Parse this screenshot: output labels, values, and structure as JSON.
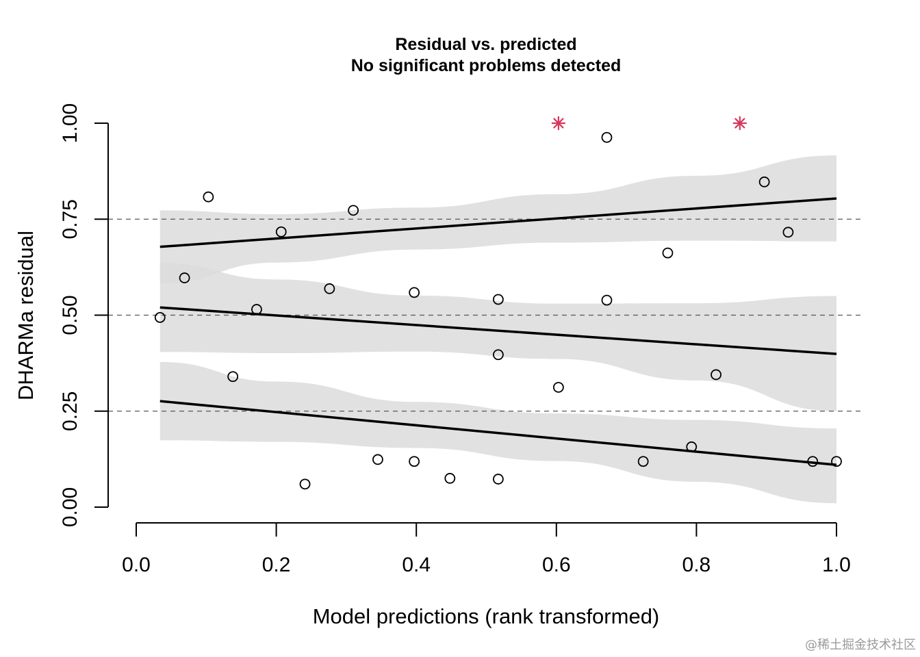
{
  "watermark": "@稀土掘金技术社区",
  "chart_data": {
    "type": "scatter",
    "title": "Residual vs. predicted",
    "subtitle": "No significant problems detected",
    "xlabel": "Model predictions (rank transformed)",
    "ylabel": "DHARMa residual",
    "xlim": [
      0.0,
      1.0
    ],
    "ylim": [
      0.0,
      1.0
    ],
    "x_ticks": [
      0.0,
      0.2,
      0.4,
      0.6,
      0.8,
      1.0
    ],
    "x_tick_labels": [
      "0.0",
      "0.2",
      "0.4",
      "0.6",
      "0.8",
      "1.0"
    ],
    "y_ticks": [
      0.0,
      0.25,
      0.5,
      0.75,
      1.0
    ],
    "y_tick_labels": [
      "0.00",
      "0.25",
      "0.50",
      "0.75",
      "1.00"
    ],
    "reference_lines_y": [
      0.25,
      0.5,
      0.75
    ],
    "colors": {
      "points": "#000000",
      "outliers": "#d6365c",
      "band": "#dcdcdc",
      "band_overlap": "#c4c4c4",
      "lines": "#000000",
      "refline": "#555555"
    },
    "points": [
      {
        "x": 0.034,
        "y": 0.494
      },
      {
        "x": 0.069,
        "y": 0.597
      },
      {
        "x": 0.103,
        "y": 0.808
      },
      {
        "x": 0.138,
        "y": 0.34
      },
      {
        "x": 0.172,
        "y": 0.515
      },
      {
        "x": 0.207,
        "y": 0.717
      },
      {
        "x": 0.241,
        "y": 0.06
      },
      {
        "x": 0.276,
        "y": 0.569
      },
      {
        "x": 0.31,
        "y": 0.773
      },
      {
        "x": 0.345,
        "y": 0.124
      },
      {
        "x": 0.397,
        "y": 0.559
      },
      {
        "x": 0.397,
        "y": 0.119
      },
      {
        "x": 0.448,
        "y": 0.075
      },
      {
        "x": 0.517,
        "y": 0.541
      },
      {
        "x": 0.517,
        "y": 0.397
      },
      {
        "x": 0.517,
        "y": 0.073
      },
      {
        "x": 0.603,
        "y": 0.312
      },
      {
        "x": 0.672,
        "y": 0.963
      },
      {
        "x": 0.672,
        "y": 0.539
      },
      {
        "x": 0.724,
        "y": 0.119
      },
      {
        "x": 0.759,
        "y": 0.662
      },
      {
        "x": 0.793,
        "y": 0.157
      },
      {
        "x": 0.828,
        "y": 0.345
      },
      {
        "x": 0.897,
        "y": 0.847
      },
      {
        "x": 0.931,
        "y": 0.716
      },
      {
        "x": 0.966,
        "y": 0.119
      },
      {
        "x": 1.0,
        "y": 0.119
      }
    ],
    "outliers": [
      {
        "x": 0.603,
        "y": 1.0
      },
      {
        "x": 0.862,
        "y": 1.0
      }
    ],
    "quantile_lines": [
      {
        "quantile": 0.75,
        "x": [
          0.034,
          0.2,
          0.4,
          0.6,
          0.8,
          1.0
        ],
        "fit": [
          0.678,
          0.7,
          0.726,
          0.752,
          0.778,
          0.804
        ],
        "lower": [
          0.583,
          0.637,
          0.671,
          0.689,
          0.694,
          0.692
        ],
        "upper": [
          0.773,
          0.763,
          0.78,
          0.815,
          0.863,
          0.916
        ]
      },
      {
        "quantile": 0.5,
        "x": [
          0.034,
          0.2,
          0.4,
          0.6,
          0.8,
          1.0
        ],
        "fit": [
          0.52,
          0.5,
          0.475,
          0.45,
          0.425,
          0.399
        ],
        "lower": [
          0.404,
          0.401,
          0.405,
          0.386,
          0.33,
          0.25
        ],
        "upper": [
          0.636,
          0.593,
          0.551,
          0.53,
          0.531,
          0.55
        ]
      },
      {
        "quantile": 0.25,
        "x": [
          0.034,
          0.2,
          0.4,
          0.6,
          0.8,
          1.0
        ],
        "fit": [
          0.276,
          0.248,
          0.214,
          0.18,
          0.146,
          0.11
        ],
        "lower": [
          0.174,
          0.17,
          0.154,
          0.12,
          0.066,
          0.01
        ],
        "upper": [
          0.378,
          0.327,
          0.274,
          0.244,
          0.227,
          0.205
        ]
      }
    ]
  }
}
